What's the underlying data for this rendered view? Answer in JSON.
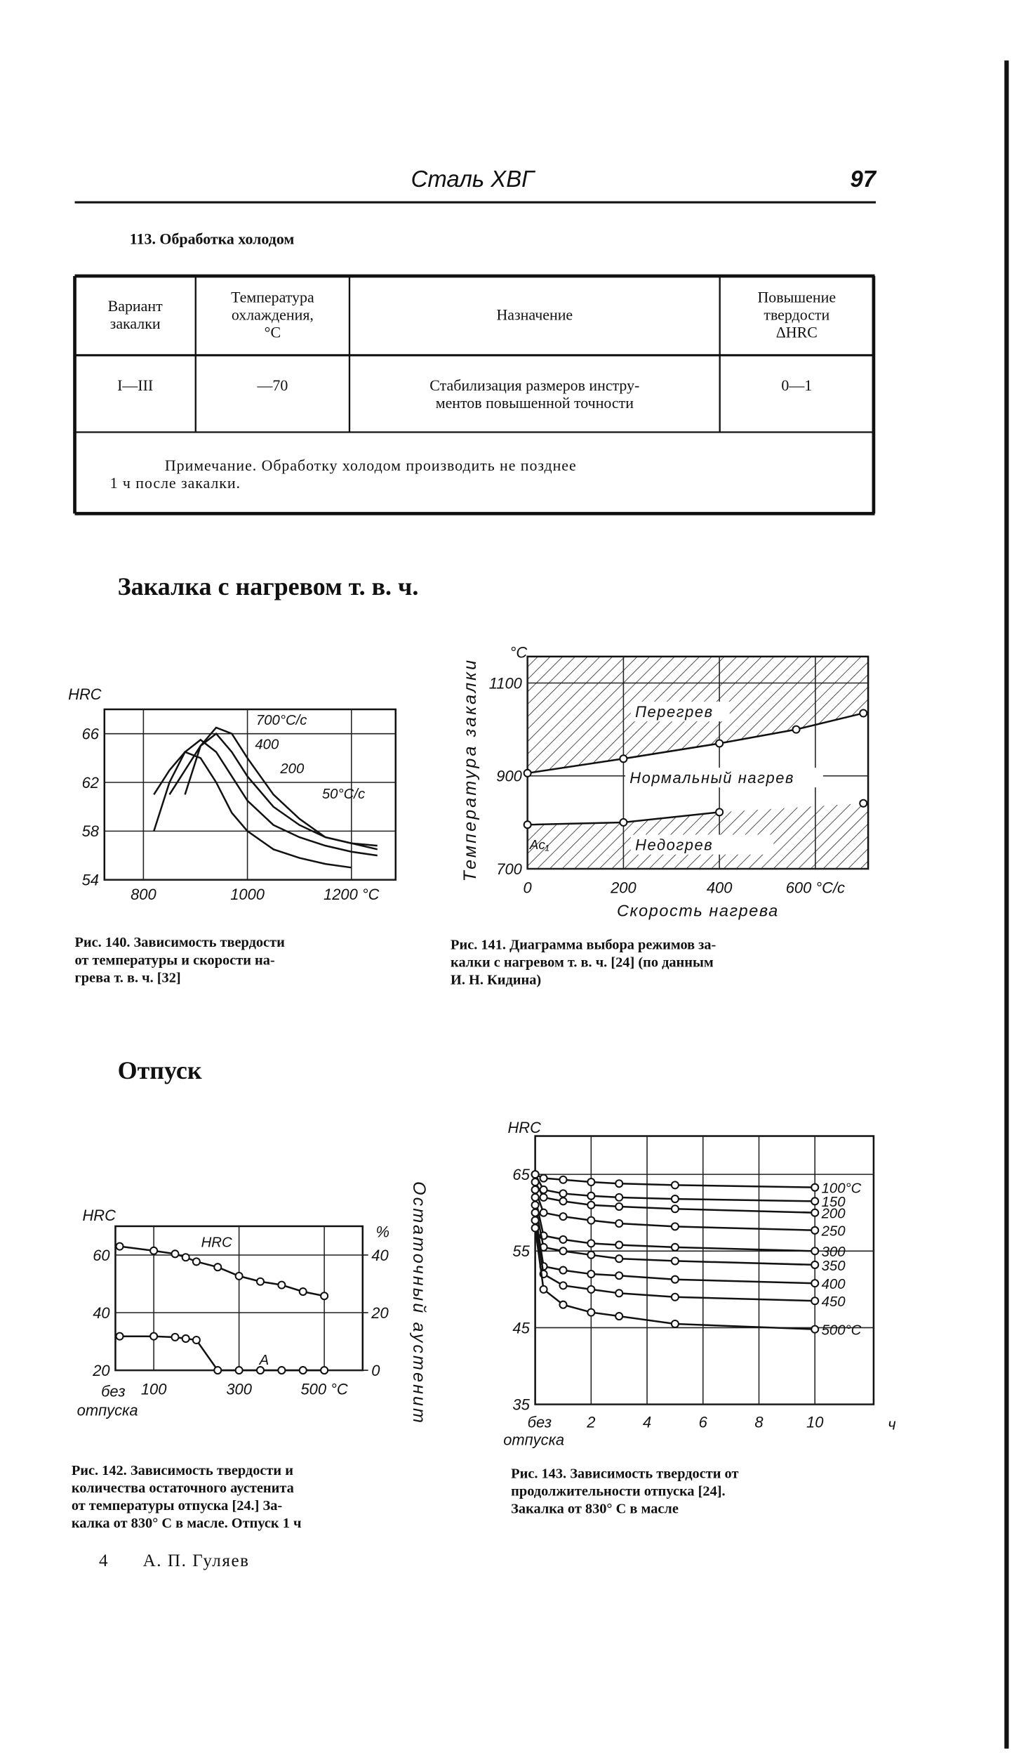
{
  "header": {
    "title": "Сталь ХВГ",
    "page": "97"
  },
  "table": {
    "caption": "113. Обработка холодом",
    "columns": [
      [
        "Вариант",
        "закалки"
      ],
      [
        "Температура",
        "охлаждения,",
        "°C"
      ],
      [
        "Назначение"
      ],
      [
        "Повышение",
        "твердости",
        "ΔHRC"
      ]
    ],
    "rows": [
      [
        [
          "I—III"
        ],
        [
          "—70"
        ],
        [
          "Стабилизация размеров инстру-",
          "ментов повышенной точности"
        ],
        [
          "0—1"
        ]
      ]
    ],
    "note": [
      "Примечание. Обработку холодом производить не позднее",
      "1 ч после закалки."
    ]
  },
  "sections": [
    "Закалка с нагревом т. в. ч.",
    "Отпуск"
  ],
  "figures": [
    {
      "caption": [
        "Рис. 140. Зависимость твердости",
        "от температуры и скорости на-",
        "грева т. в. ч. [32]"
      ]
    },
    {
      "caption": [
        "Рис. 141. Диаграмма выбора режимов за-",
        "калки с нагревом т. в. ч. [24] (по данным",
        "И. Н. Кидина)"
      ]
    },
    {
      "caption": [
        "Рис. 142. Зависимость твердости и",
        "количества остаточного аустенита",
        "от температуры отпуска [24.] За-",
        "калка от 830° С в масле. Отпуск 1 ч"
      ]
    },
    {
      "caption": [
        "Рис. 143. Зависимость твердости от",
        "продолжительности отпуска [24].",
        "Закалка от 830° С в масле"
      ]
    }
  ],
  "footer": {
    "page_number": "4",
    "author": "А. П. Гуляев"
  },
  "chart_data": [
    {
      "type": "line",
      "ylabel": "HRC",
      "x": [
        820,
        850,
        880,
        910,
        940,
        970,
        1000,
        1050,
        1100,
        1150,
        1200,
        1250
      ],
      "xlim": [
        725,
        1285
      ],
      "xticks": [
        800,
        1000,
        {
          "value": 1200,
          "label": "1200 °C"
        }
      ],
      "ylim": [
        54,
        68
      ],
      "yticks": [
        54,
        58,
        62,
        66
      ],
      "grid": true,
      "color": "#111111",
      "series": [
        {
          "name": "700°C/с",
          "values": [
            null,
            null,
            61,
            65,
            66.5,
            66,
            64,
            61,
            59,
            57.5,
            57,
            56.5
          ]
        },
        {
          "name": "400",
          "values": [
            null,
            61,
            63,
            65,
            66,
            64.5,
            62.5,
            60,
            58.5,
            57.5,
            57,
            56.8
          ]
        },
        {
          "name": "200",
          "values": [
            61,
            63,
            64.5,
            65.5,
            64.5,
            62.5,
            60.5,
            58.5,
            57.5,
            56.8,
            56.3,
            56
          ]
        },
        {
          "name": "50°C/с",
          "values": [
            58,
            62,
            64.5,
            64,
            62,
            59.5,
            58,
            56.5,
            55.8,
            55.3,
            55,
            null
          ]
        }
      ]
    },
    {
      "type": "line",
      "ylabel": "Температура закалки",
      "yunit": "°C",
      "xlabel": "Скорость нагрева",
      "x": [
        0,
        200,
        400,
        560,
        700
      ],
      "xlim": [
        0,
        710
      ],
      "xticks": [
        0,
        200,
        400,
        {
          "value": 600,
          "label": "600 °C/с"
        }
      ],
      "ylim": [
        700,
        1157
      ],
      "yticks": [
        700,
        900,
        1100
      ],
      "grid": true,
      "markers": true,
      "hatch": true,
      "color": "#111111",
      "regions": [
        "Перегрев",
        "Нормальный нагрев",
        "Недогрев"
      ],
      "annotation": "Ac₁",
      "series": [
        {
          "values": [
            906,
            937,
            970,
            1000,
            1035
          ]
        },
        {
          "values": [
            795,
            800,
            822,
            null,
            841
          ]
        }
      ]
    },
    {
      "type": "line",
      "ylabel": "HRC",
      "y2label": "%",
      "y2title": "Остаточный аустенит",
      "x_origin_label": [
        "без",
        "отпуска"
      ],
      "x": [
        20,
        100,
        150,
        175,
        200,
        250,
        300,
        350,
        400,
        450,
        500
      ],
      "xlim": [
        10,
        590
      ],
      "xticks": [
        100,
        300,
        {
          "value": 500,
          "label": "500 °C"
        }
      ],
      "ylim": [
        20,
        70
      ],
      "yticks": [
        20,
        40,
        60
      ],
      "y2lim": [
        0,
        50
      ],
      "y2ticks": [
        0,
        20,
        40
      ],
      "grid": true,
      "markers": true,
      "color": "#111111",
      "series": [
        {
          "name": "HRC",
          "values": [
            63,
            61.5,
            60.4,
            59.2,
            57.7,
            55.8,
            52.7,
            50.8,
            49.6,
            47.3,
            45.8
          ]
        },
        {
          "name": "A",
          "axis": "y2",
          "values": [
            11.8,
            11.8,
            11.5,
            11,
            10.5,
            0,
            0,
            0,
            0,
            0,
            0
          ]
        }
      ]
    },
    {
      "type": "line",
      "ylabel": "HRC",
      "x_origin_label": [
        "без",
        "отпуска"
      ],
      "xunit": "ч",
      "x": [
        0,
        0.3,
        1,
        2,
        3,
        5,
        10
      ],
      "xlim": [
        0,
        12.1
      ],
      "xticks": [
        2,
        4,
        6,
        8,
        10
      ],
      "ylim": [
        35,
        70
      ],
      "yticks": [
        35,
        45,
        55,
        65
      ],
      "grid": true,
      "markers": true,
      "color": "#111111",
      "series": [
        {
          "name": "100°C",
          "values": [
            65,
            64.5,
            64.3,
            64,
            63.8,
            63.6,
            63.3
          ]
        },
        {
          "name": "150",
          "values": [
            65,
            63,
            62.5,
            62.2,
            62,
            61.8,
            61.5
          ]
        },
        {
          "name": "200",
          "values": [
            64,
            62,
            61.5,
            61,
            60.8,
            60.5,
            60
          ]
        },
        {
          "name": "250",
          "values": [
            63,
            60,
            59.5,
            59,
            58.6,
            58.2,
            57.7
          ]
        },
        {
          "name": "300",
          "values": [
            62,
            57,
            56.5,
            56,
            55.8,
            55.5,
            55
          ]
        },
        {
          "name": "350",
          "values": [
            61,
            55.5,
            55,
            54.5,
            54,
            53.7,
            53.2
          ]
        },
        {
          "name": "400",
          "values": [
            60,
            53,
            52.5,
            52,
            51.8,
            51.3,
            50.8
          ]
        },
        {
          "name": "450",
          "values": [
            59,
            52,
            50.5,
            50,
            49.5,
            49,
            48.5
          ]
        },
        {
          "name": "500°C",
          "values": [
            58,
            50,
            48,
            47,
            46.5,
            45.5,
            44.8
          ]
        }
      ]
    }
  ]
}
